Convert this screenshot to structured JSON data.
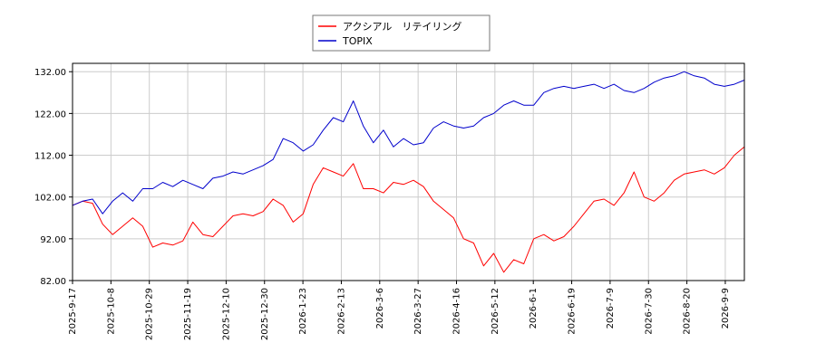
{
  "chart_data": {
    "type": "line",
    "title": "",
    "xlabel": "",
    "ylabel": "",
    "ylim": [
      82,
      134
    ],
    "grid": true,
    "legend_position": "top-center",
    "y_ticks": [
      "82.00",
      "92.00",
      "102.00",
      "112.00",
      "122.00",
      "132.00"
    ],
    "x_ticks": [
      "2025-9-17",
      "2025-10-8",
      "2025-10-29",
      "2025-11-19",
      "2025-12-10",
      "2025-12-30",
      "2026-1-23",
      "2026-2-13",
      "2026-3-6",
      "2026-3-27",
      "2026-4-16",
      "2026-5-12",
      "2026-6-1",
      "2026-6-19",
      "2026-7-9",
      "2026-7-30",
      "2026-8-20",
      "2026-9-9"
    ],
    "series": [
      {
        "name": "アクシアル　リテイリング",
        "color": "#ff0000",
        "values": [
          100.0,
          101.0,
          100.5,
          95.5,
          93.0,
          95.0,
          97.0,
          95.0,
          90.0,
          91.0,
          90.5,
          91.5,
          96.0,
          93.0,
          92.5,
          95.0,
          97.5,
          98.0,
          97.5,
          98.5,
          101.5,
          100.0,
          96.0,
          98.0,
          105.0,
          109.0,
          108.0,
          107.0,
          110.0,
          104.0,
          104.0,
          103.0,
          105.5,
          105.0,
          106.0,
          104.5,
          101.0,
          99.0,
          97.0,
          92.0,
          91.0,
          85.5,
          88.5,
          84.0,
          87.0,
          86.0,
          92.0,
          93.0,
          91.5,
          92.5,
          95.0,
          98.0,
          101.0,
          101.5,
          100.0,
          103.0,
          108.0,
          102.0,
          101.0,
          103.0,
          106.0,
          107.5,
          108.0,
          108.5,
          107.5,
          109.0,
          112.0,
          114.0
        ]
      },
      {
        "name": "TOPIX",
        "color": "#0000cc",
        "values": [
          100.0,
          101.0,
          101.5,
          98.0,
          101.0,
          103.0,
          101.0,
          104.0,
          104.0,
          105.5,
          104.5,
          106.0,
          105.0,
          104.0,
          106.5,
          107.0,
          108.0,
          107.5,
          108.5,
          109.5,
          111.0,
          116.0,
          115.0,
          113.0,
          114.5,
          118.0,
          121.0,
          120.0,
          125.0,
          119.0,
          115.0,
          118.0,
          114.0,
          116.0,
          114.5,
          115.0,
          118.5,
          120.0,
          119.0,
          118.5,
          119.0,
          121.0,
          122.0,
          124.0,
          125.0,
          124.0,
          124.0,
          127.0,
          128.0,
          128.5,
          128.0,
          128.5,
          129.0,
          128.0,
          129.0,
          127.5,
          127.0,
          128.0,
          129.5,
          130.5,
          131.0,
          132.0,
          131.0,
          130.5,
          129.0,
          128.5,
          129.0,
          130.0
        ]
      }
    ]
  }
}
